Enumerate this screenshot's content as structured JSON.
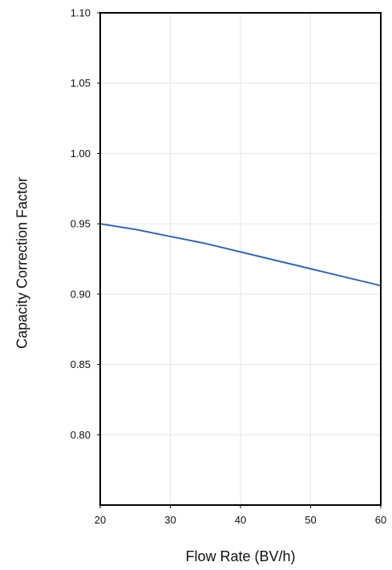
{
  "chart_data": {
    "type": "line",
    "title": "",
    "xlabel": "Flow Rate (BV/h)",
    "ylabel": "Capacity Correction Factor",
    "xlim": [
      20,
      60
    ],
    "ylim": [
      0.75,
      1.1
    ],
    "xticks": [
      20,
      30,
      40,
      50,
      60
    ],
    "xtick_labels": [
      "20",
      "30",
      "40",
      "50",
      "60"
    ],
    "yticks": [
      0.8,
      0.85,
      0.9,
      0.95,
      1.0,
      1.05,
      1.1
    ],
    "ytick_labels": [
      "0.80",
      "0.85",
      "0.90",
      "0.95",
      "1.00",
      "1.05",
      "1.10"
    ],
    "grid": true,
    "series": [
      {
        "color": "#3366b3",
        "x": [
          20,
          25,
          30,
          35,
          40,
          45,
          50,
          55,
          60
        ],
        "y": [
          0.95,
          0.946,
          0.941,
          0.936,
          0.93,
          0.924,
          0.918,
          0.912,
          0.906
        ]
      }
    ]
  }
}
